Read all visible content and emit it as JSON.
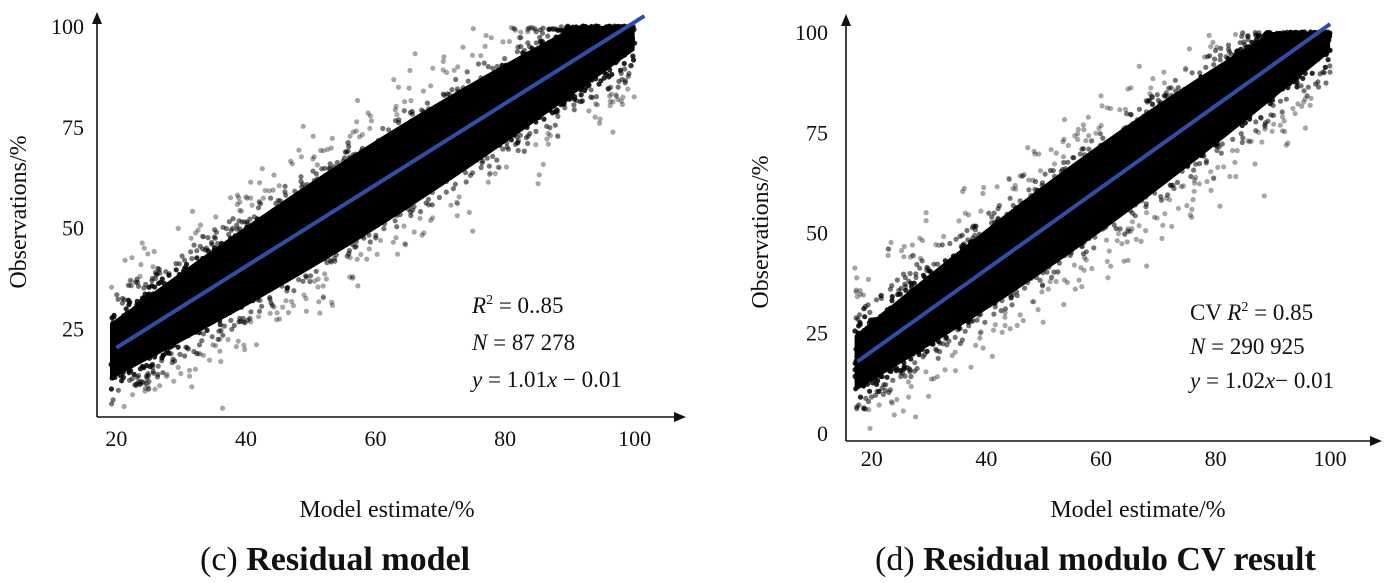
{
  "chart_data": [
    {
      "panel": "c",
      "type": "scatter",
      "caption_letter": "(c)",
      "caption_title": "Residual model",
      "xlabel": "Model estimate/%",
      "ylabel": "Observations/%",
      "x_ticks": [
        20,
        40,
        60,
        80,
        100
      ],
      "y_ticks": [
        25,
        50,
        75,
        100
      ],
      "x_tick_labels": [
        "20",
        "40",
        "60",
        "80",
        "100"
      ],
      "y_tick_labels": [
        "25",
        "50",
        "75",
        "100"
      ],
      "xlim": [
        17,
        107
      ],
      "ylim": [
        3,
        102
      ],
      "grid": false,
      "point_color": "#000000",
      "fit_color": "#2e4fa3",
      "fit_line": {
        "slope": 1.01,
        "intercept": -0.01,
        "x_range": [
          20,
          101.5
        ]
      },
      "scatter_band": {
        "x_min": 19,
        "x_max": 100,
        "y_cap": 100,
        "n_points": 87278
      },
      "annotation": {
        "r2_symbol": "R",
        "r2_sup": "2",
        "r2_value": " = 0..85",
        "n_symbol": "N",
        "n_value": " = 87 278",
        "eq_y": "y",
        "eq_mid": " = 1.01",
        "eq_x": "x",
        "eq_tail": " − 0.01"
      }
    },
    {
      "panel": "d",
      "type": "scatter",
      "caption_letter": "(d)",
      "caption_title": "Residual modulo CV result",
      "xlabel": "Model estimate/%",
      "ylabel": "Observations/%",
      "x_ticks": [
        20,
        40,
        60,
        80,
        100
      ],
      "y_ticks": [
        0,
        25,
        50,
        75,
        100
      ],
      "x_tick_labels": [
        "20",
        "40",
        "60",
        "80",
        "100"
      ],
      "y_tick_labels": [
        "0",
        "25",
        "50",
        "75",
        "100"
      ],
      "xlim": [
        15.5,
        108
      ],
      "ylim": [
        -2,
        103
      ],
      "grid": false,
      "point_color": "#000000",
      "fit_color": "#2e4fa3",
      "fit_line": {
        "slope": 1.02,
        "intercept": -0.01,
        "x_range": [
          17.5,
          100
        ]
      },
      "scatter_band": {
        "x_min": 17,
        "x_max": 100,
        "y_cap": 100,
        "n_points": 290925
      },
      "annotation": {
        "r2_prefix": "CV ",
        "r2_symbol": "R",
        "r2_sup": "2",
        "r2_value": " = 0.85",
        "n_symbol": "N",
        "n_value": " = 290 925",
        "eq_y": "y",
        "eq_mid": " = 1.02",
        "eq_x": "x",
        "eq_tail": "− 0.01"
      }
    }
  ]
}
